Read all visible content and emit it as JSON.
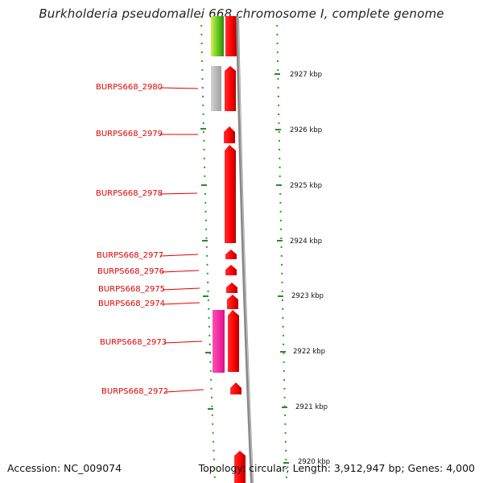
{
  "header": {
    "title": "Burkholderia pseudomallei 668 chromosome I, complete genome"
  },
  "footer": {
    "accession": "Accession: NC_009074",
    "topology": "Topology: circular; Length: 3,912,947 bp; Genes: 4,000"
  },
  "scale": {
    "ticks": [
      {
        "label": "2927 kbp"
      },
      {
        "label": "2926 kbp"
      },
      {
        "label": "2925 kbp"
      },
      {
        "label": "2924 kbp"
      },
      {
        "label": "2923 kbp"
      },
      {
        "label": "2922 kbp"
      },
      {
        "label": "2921 kbp"
      },
      {
        "label": "2920 kbp"
      }
    ]
  },
  "genes": [
    {
      "label": "BURPS668_2980"
    },
    {
      "label": "BURPS668_2979"
    },
    {
      "label": "BURPS668_2978"
    },
    {
      "label": "BURPS668_2977"
    },
    {
      "label": "BURPS668_2976"
    },
    {
      "label": "BURPS668_2975"
    },
    {
      "label": "BURPS668_2974"
    },
    {
      "label": "BURPS668_2973"
    },
    {
      "label": "BURPS668_2972"
    }
  ],
  "colors": {
    "gene": "#ff0000",
    "pink_feature": "#ff2aa0",
    "gray_feature": "#b8b8b8",
    "green_feature": "#55bb22",
    "backbone": "#888888",
    "dots": "#2a9a2a",
    "label": "#e00000"
  }
}
